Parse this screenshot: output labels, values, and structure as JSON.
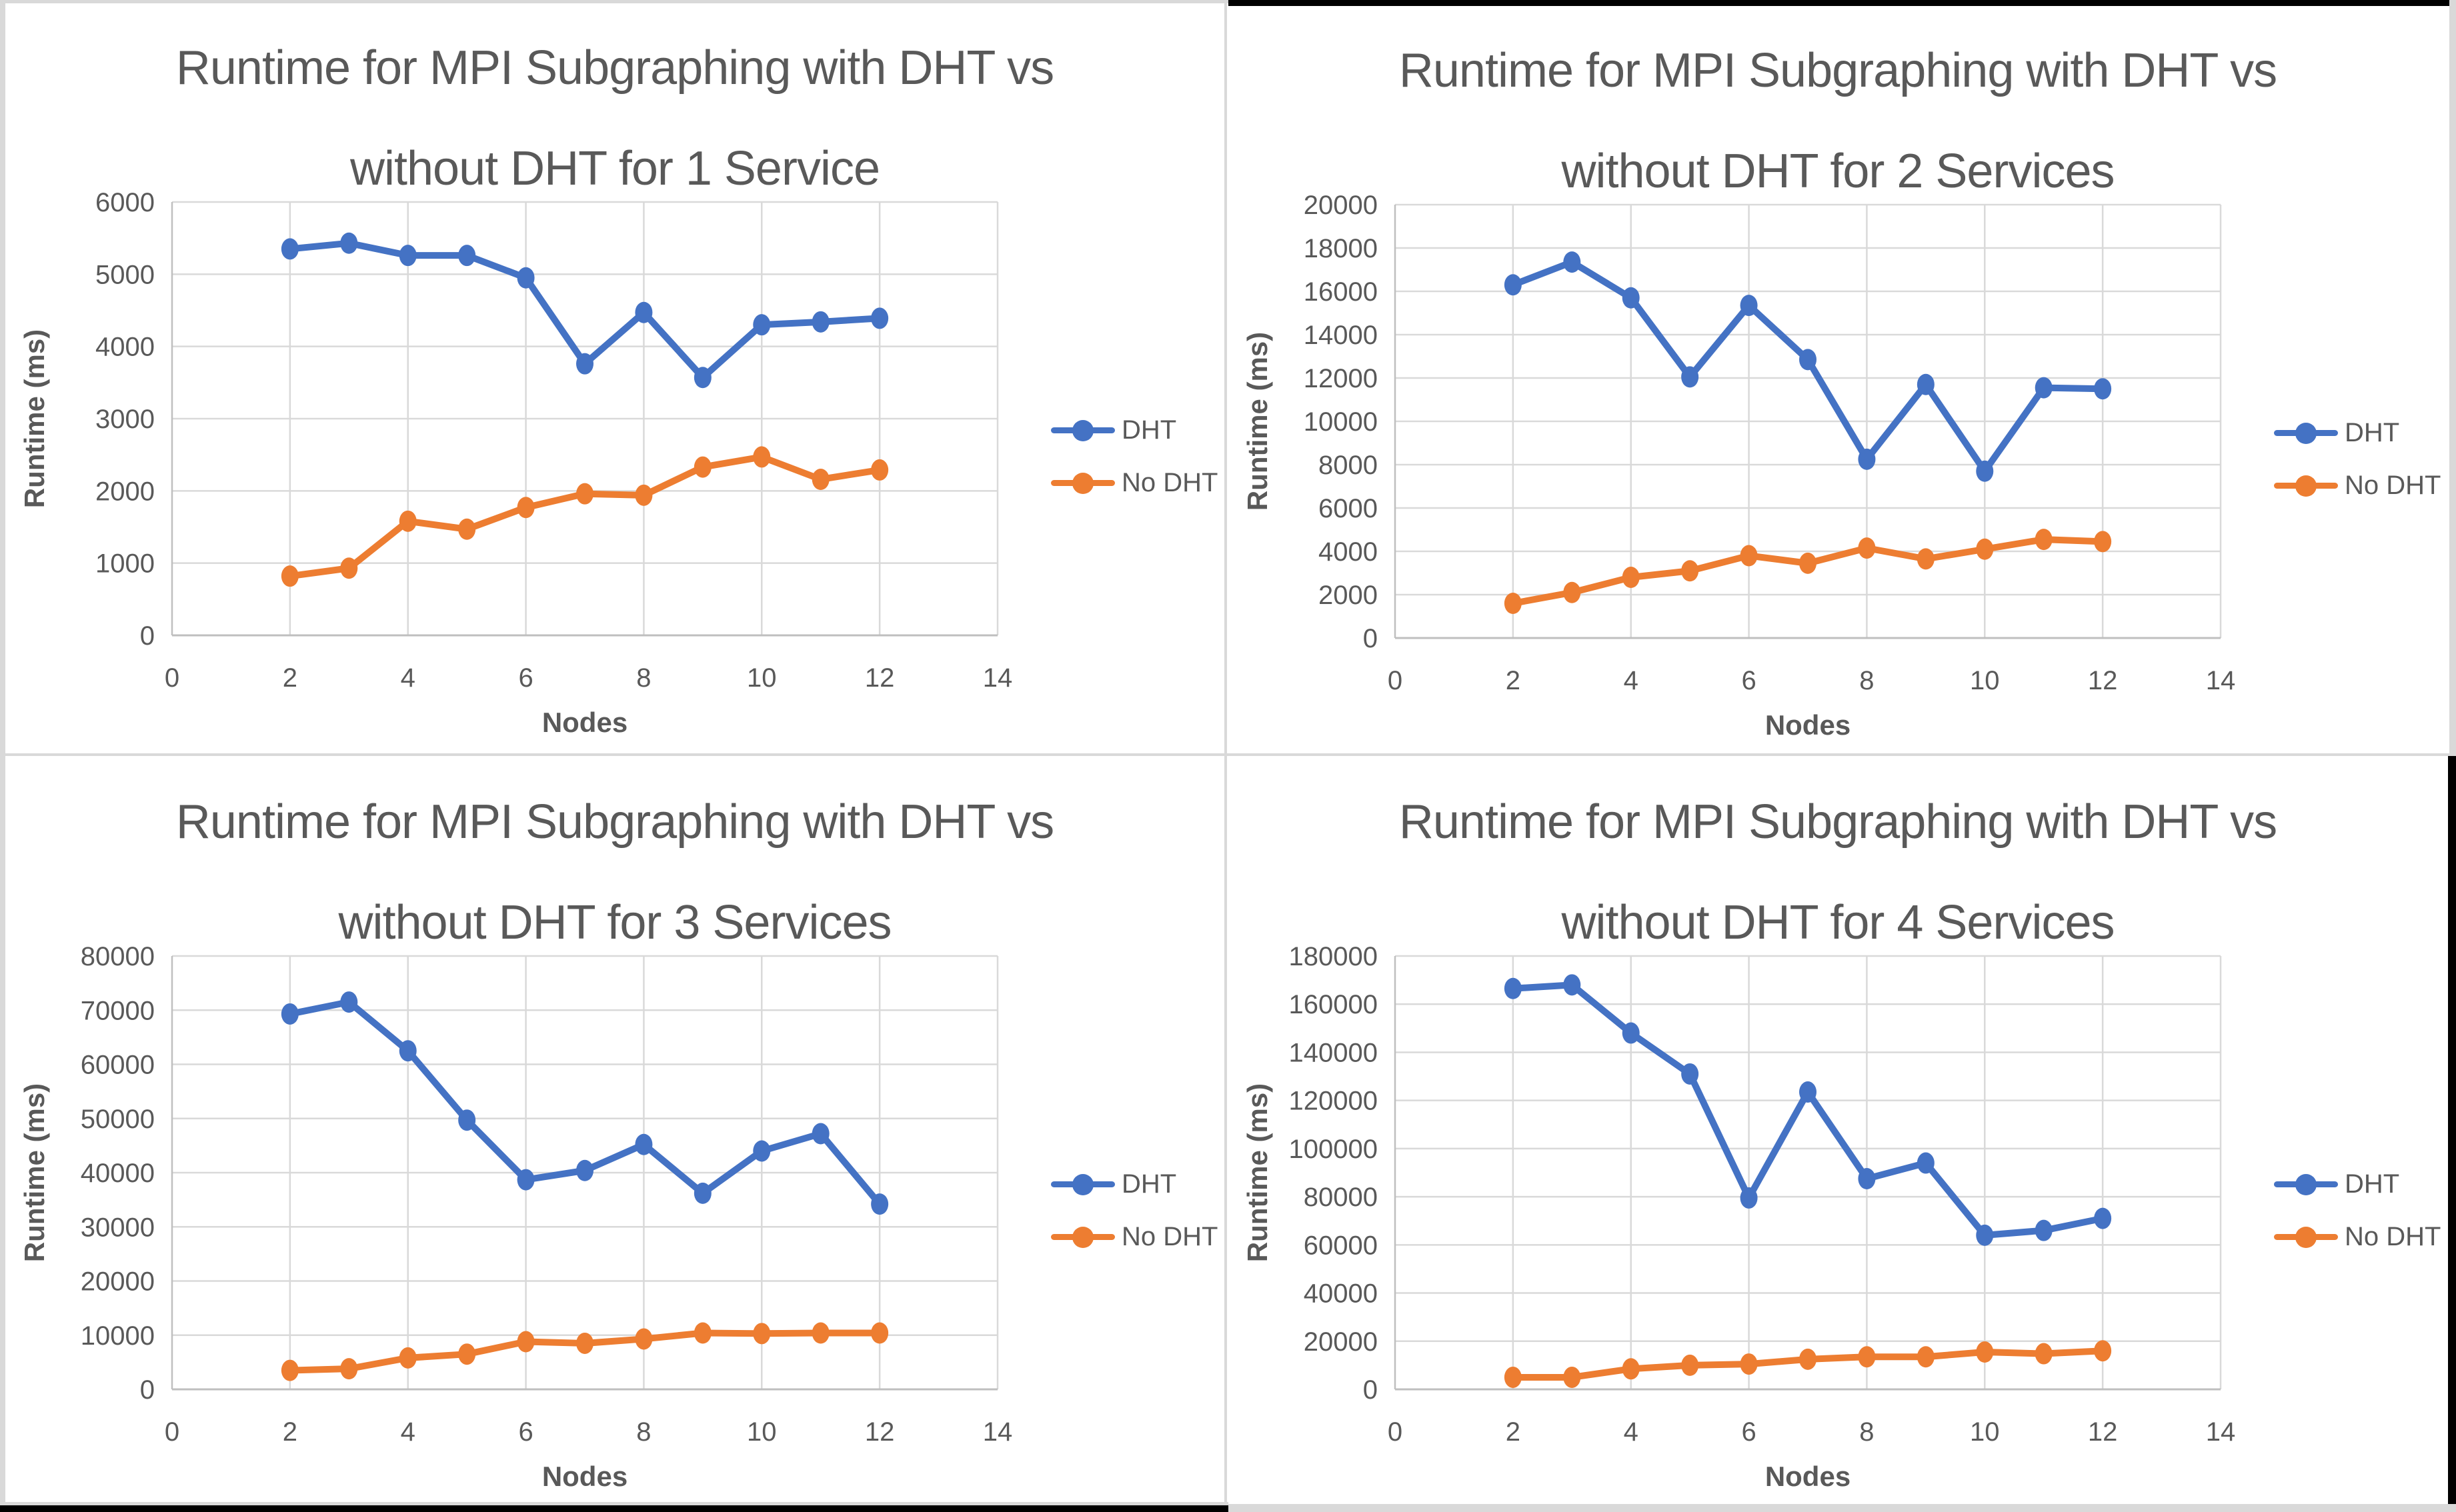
{
  "colors": {
    "dht": "#4472C4",
    "no_dht": "#ED7D31",
    "gridline": "#D9D9D9",
    "axis_line": "#BFBFBF",
    "text": "#595959"
  },
  "chart_data": [
    {
      "type": "line",
      "title": "Runtime for MPI Subgraphing with DHT vs\nwithout DHT for 1 Service",
      "xlabel": "Nodes",
      "ylabel": "Runtime (ms)",
      "x": [
        2,
        3,
        4,
        5,
        6,
        7,
        8,
        9,
        10,
        11,
        12
      ],
      "xlim": [
        0,
        14
      ],
      "xtick_step": 2,
      "ylim": [
        0,
        6000
      ],
      "ytick_step": 1000,
      "grid": true,
      "legend_position": "right",
      "series": [
        {
          "name": "DHT",
          "color": "#4472C4",
          "values": [
            5350,
            5430,
            5260,
            5260,
            4950,
            3760,
            4470,
            3570,
            4300,
            4340,
            4390
          ]
        },
        {
          "name": "No DHT",
          "color": "#ED7D31",
          "values": [
            820,
            930,
            1580,
            1470,
            1770,
            1960,
            1940,
            2330,
            2470,
            2160,
            2290
          ]
        }
      ]
    },
    {
      "type": "line",
      "title": "Runtime for MPI Subgraphing with DHT vs\nwithout DHT for 2 Services",
      "xlabel": "Nodes",
      "ylabel": "Runtime (ms)",
      "x": [
        2,
        3,
        4,
        5,
        6,
        7,
        8,
        9,
        10,
        11,
        12
      ],
      "xlim": [
        0,
        14
      ],
      "xtick_step": 2,
      "ylim": [
        0,
        20000
      ],
      "ytick_step": 2000,
      "grid": true,
      "legend_position": "right",
      "series": [
        {
          "name": "DHT",
          "color": "#4472C4",
          "values": [
            16300,
            17350,
            15700,
            12050,
            15350,
            12850,
            8250,
            11700,
            7700,
            11550,
            11500
          ]
        },
        {
          "name": "No DHT",
          "color": "#ED7D31",
          "values": [
            1600,
            2100,
            2800,
            3100,
            3800,
            3450,
            4150,
            3650,
            4100,
            4550,
            4450
          ]
        }
      ]
    },
    {
      "type": "line",
      "title": "Runtime for MPI Subgraphing with DHT vs\nwithout DHT for 3 Services",
      "xlabel": "Nodes",
      "ylabel": "Runtime (ms)",
      "x": [
        2,
        3,
        4,
        5,
        6,
        7,
        8,
        9,
        10,
        11,
        12
      ],
      "xlim": [
        0,
        14
      ],
      "xtick_step": 2,
      "ylim": [
        0,
        80000
      ],
      "ytick_step": 10000,
      "grid": true,
      "legend_position": "right",
      "series": [
        {
          "name": "DHT",
          "color": "#4472C4",
          "values": [
            69300,
            71500,
            62500,
            49700,
            38700,
            40400,
            45200,
            36200,
            44000,
            47200,
            34200
          ]
        },
        {
          "name": "No DHT",
          "color": "#ED7D31",
          "values": [
            3500,
            3800,
            5800,
            6500,
            8800,
            8500,
            9300,
            10400,
            10300,
            10400,
            10400
          ]
        }
      ]
    },
    {
      "type": "line",
      "title": "Runtime for MPI Subgraphing with DHT vs\nwithout DHT for 4 Services",
      "xlabel": "Nodes",
      "ylabel": "Runtime (ms)",
      "x": [
        2,
        3,
        4,
        5,
        6,
        7,
        8,
        9,
        10,
        11,
        12
      ],
      "xlim": [
        0,
        14
      ],
      "xtick_step": 2,
      "ylim": [
        0,
        180000
      ],
      "ytick_step": 20000,
      "grid": true,
      "legend_position": "right",
      "series": [
        {
          "name": "DHT",
          "color": "#4472C4",
          "values": [
            166500,
            168000,
            148000,
            131000,
            79500,
            123500,
            87500,
            94000,
            64000,
            66000,
            71000
          ]
        },
        {
          "name": "No DHT",
          "color": "#ED7D31",
          "values": [
            5000,
            5000,
            8500,
            10000,
            10500,
            12500,
            13500,
            13500,
            15500,
            14800,
            16000
          ]
        }
      ]
    }
  ]
}
